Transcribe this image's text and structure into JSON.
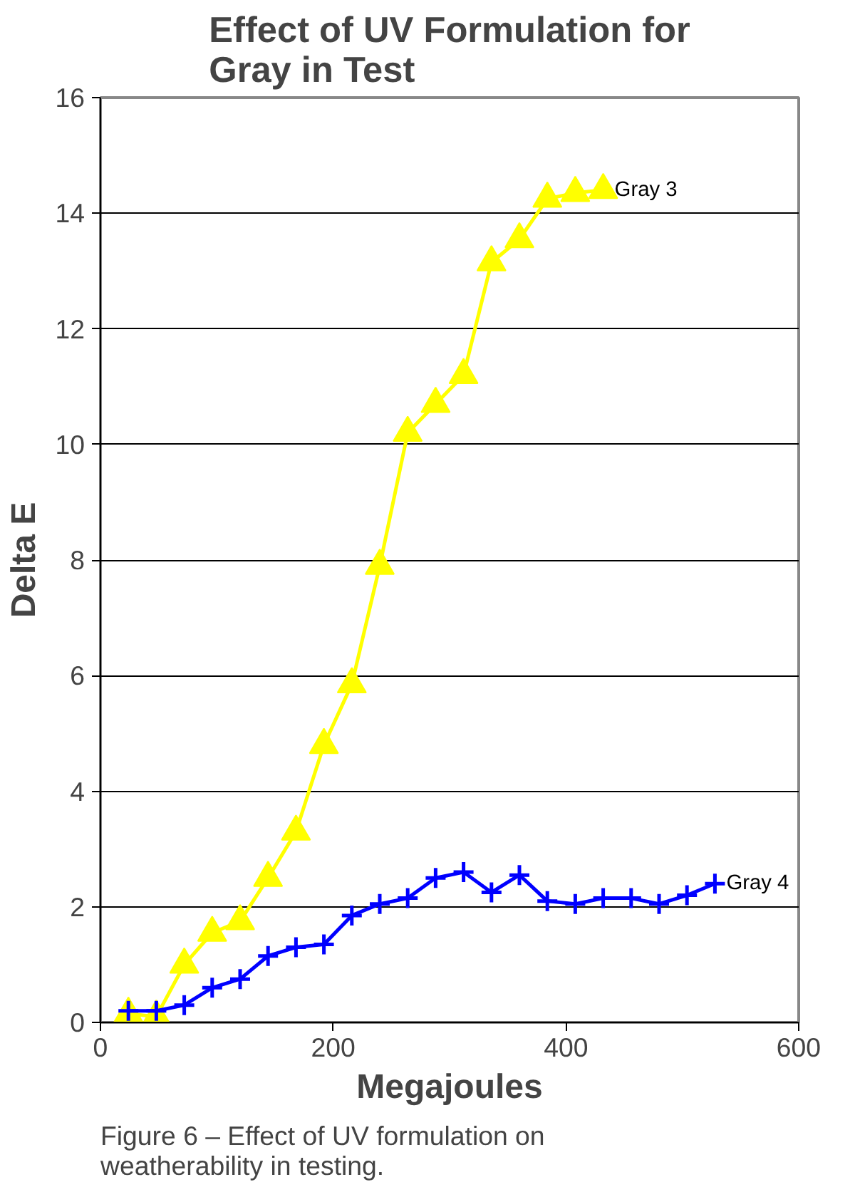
{
  "chart_data": {
    "type": "line",
    "title": "Effect of UV Formulation for\nGray in Test",
    "xlabel": "Megajoules",
    "ylabel": "Delta E",
    "x": [
      24,
      48,
      72,
      96,
      120,
      144,
      168,
      192,
      216,
      240,
      264,
      288,
      312,
      336,
      360,
      384,
      408,
      432,
      456,
      480,
      504,
      528
    ],
    "series": [
      {
        "name": "Gray 3",
        "color": "#ffff00",
        "marker": "triangle",
        "x": [
          24,
          48,
          72,
          96,
          120,
          144,
          168,
          192,
          216,
          240,
          264,
          288,
          312,
          336,
          360,
          384,
          408,
          432
        ],
        "values": [
          0.15,
          0.1,
          1.0,
          1.55,
          1.75,
          2.5,
          3.3,
          4.8,
          5.85,
          7.9,
          10.2,
          10.7,
          11.2,
          13.15,
          13.55,
          14.25,
          14.35,
          14.4
        ]
      },
      {
        "name": "Gray 4",
        "color": "#0000ff",
        "marker": "cross",
        "values": [
          0.2,
          0.2,
          0.3,
          0.6,
          0.75,
          1.15,
          1.3,
          1.35,
          1.85,
          2.05,
          2.15,
          2.5,
          2.6,
          2.25,
          2.55,
          2.1,
          2.05,
          2.15,
          2.15,
          2.05,
          2.2,
          2.4
        ]
      }
    ],
    "xlim": [
      0,
      600
    ],
    "xticks": [
      0,
      200,
      400,
      600
    ],
    "ylim": [
      0,
      16
    ],
    "yticks": [
      0,
      2,
      4,
      6,
      8,
      10,
      12,
      14,
      16
    ],
    "grid": "y",
    "annotations": [
      "Figure 6 – Effect of UV formulation on\nweatherability in testing."
    ]
  }
}
